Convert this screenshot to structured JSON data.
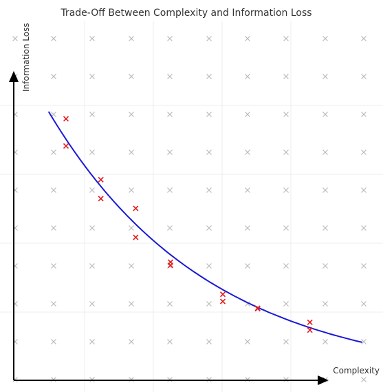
{
  "chart_data": {
    "type": "scatter",
    "title": "Trade-Off Between Complexity and Information Loss",
    "xlabel": "Complexity",
    "ylabel": "Information Loss",
    "grid": true,
    "axis_ticks_shown": false,
    "series": [
      {
        "role": "observed",
        "marker": "x",
        "color": "#e31a1c",
        "x": [
          1.5,
          2.5,
          3.5,
          4.5,
          6.0,
          7.0,
          8.5
        ],
        "y": [
          7.3,
          5.6,
          4.8,
          3.3,
          2.2,
          2.0,
          1.4
        ]
      },
      {
        "role": "on-curve",
        "marker": "x",
        "color": "#e31a1c",
        "x": [
          1.5,
          2.5,
          3.5,
          4.5,
          6.0,
          7.0,
          8.5
        ],
        "y": [
          6.54,
          5.07,
          3.99,
          3.21,
          2.4,
          2.01,
          1.62
        ]
      },
      {
        "role": "curve",
        "style": "line",
        "color": "#1a1ad6",
        "x_range": [
          1.0,
          10.0
        ],
        "y_at_start": 7.5,
        "y_at_end": 1.06
      }
    ],
    "background_markers": {
      "marker": "x",
      "color": "#bbbbbb"
    }
  }
}
